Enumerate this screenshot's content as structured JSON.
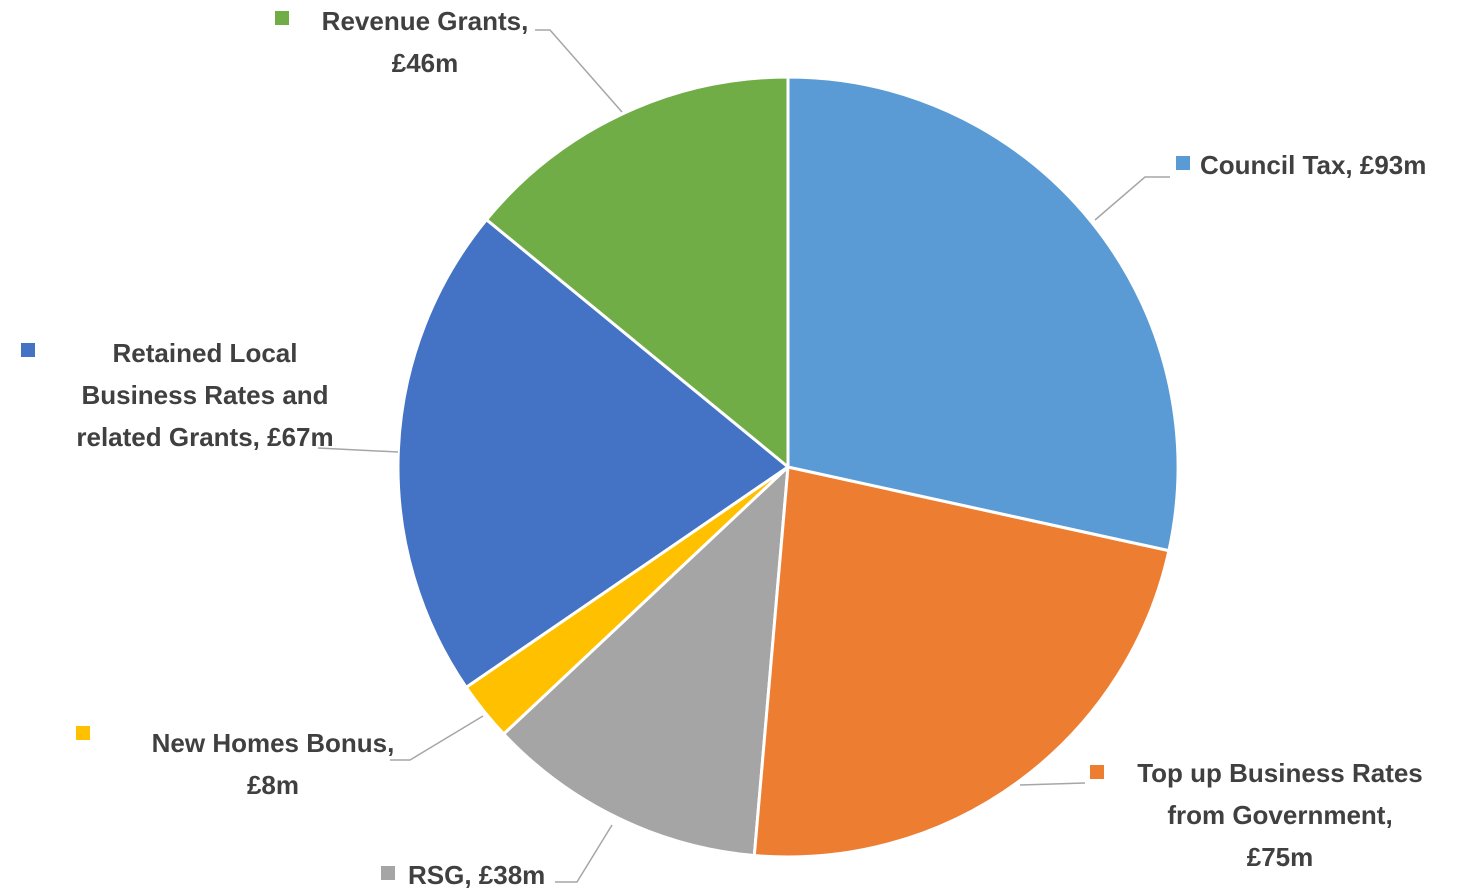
{
  "chart_data": {
    "type": "pie",
    "values": [
      93,
      75,
      38,
      8,
      67,
      46
    ],
    "value_labels": [
      "Council Tax, £93m",
      "Top up Business Rates\nfrom Government,\n£75m",
      "RSG, £38m",
      "New Homes Bonus,\n£8m",
      "Retained Local\nBusiness Rates and\nrelated Grants, £67m",
      "Revenue Grants,\n£46m"
    ],
    "colors": [
      "#5b9bd5",
      "#ed7d31",
      "#a5a5a5",
      "#ffc000",
      "#4472c4",
      "#70ad47"
    ]
  }
}
